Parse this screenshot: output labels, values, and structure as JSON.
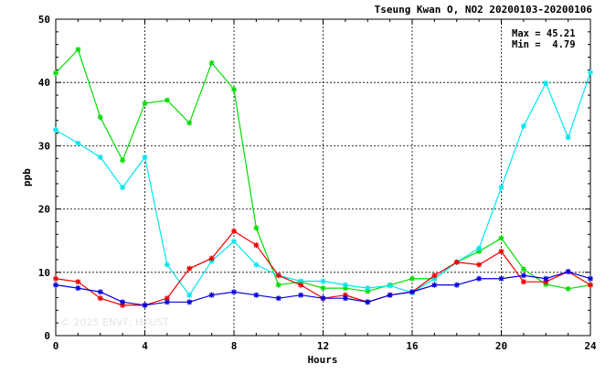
{
  "chart_data": {
    "type": "line",
    "title": "Tseung Kwan O, NO2 20200103-20200106",
    "xlabel": "Hours",
    "ylabel": "ppb",
    "xlim": [
      0,
      24
    ],
    "ylim": [
      0,
      50
    ],
    "xticks": [
      "0",
      "4",
      "8",
      "12",
      "16",
      "20",
      "24"
    ],
    "yticks": [
      "0",
      "10",
      "20",
      "30",
      "40",
      "50"
    ],
    "grid": true,
    "max_label": "Max = 45.21",
    "min_label": "Min =  4.79",
    "watermark": "© 2025  ENVF, HKUST",
    "x": [
      0,
      1,
      2,
      3,
      4,
      5,
      6,
      7,
      8,
      9,
      10,
      11,
      12,
      13,
      14,
      15,
      16,
      17,
      18,
      19,
      20,
      21,
      22,
      23,
      24
    ],
    "series": [
      {
        "color": "#00dd00",
        "values": [
          41.5,
          45.2,
          34.5,
          27.7,
          36.7,
          37.2,
          33.6,
          43.1,
          38.9,
          17.0,
          8.0,
          8.5,
          7.5,
          7.5,
          7.0,
          8.0,
          9.0,
          9.0,
          11.6,
          13.3,
          15.4,
          10.5,
          8.1,
          7.4,
          8.0
        ]
      },
      {
        "color": "#00e5ee",
        "values": [
          32.5,
          30.4,
          28.2,
          23.4,
          28.2,
          11.2,
          6.4,
          11.8,
          14.9,
          11.2,
          9.5,
          8.6,
          8.6,
          8.0,
          7.5,
          7.9,
          6.8,
          9.0,
          11.6,
          13.8,
          23.4,
          33.1,
          39.9,
          31.3,
          41.6
        ]
      },
      {
        "color": "#ee0000",
        "values": [
          9.0,
          8.5,
          5.9,
          4.8,
          4.8,
          5.9,
          10.6,
          12.2,
          16.5,
          14.3,
          9.5,
          8.0,
          5.9,
          6.4,
          5.3,
          6.4,
          6.9,
          9.5,
          11.6,
          11.2,
          13.3,
          8.5,
          8.5,
          10.1,
          8.0
        ]
      },
      {
        "color": "#0000dd",
        "values": [
          8.0,
          7.5,
          6.9,
          5.3,
          4.8,
          5.3,
          5.3,
          6.4,
          6.9,
          6.4,
          5.9,
          6.4,
          5.9,
          5.9,
          5.3,
          6.4,
          6.9,
          8.0,
          8.0,
          9.0,
          9.0,
          9.5,
          9.0,
          10.1,
          9.0
        ]
      }
    ]
  }
}
